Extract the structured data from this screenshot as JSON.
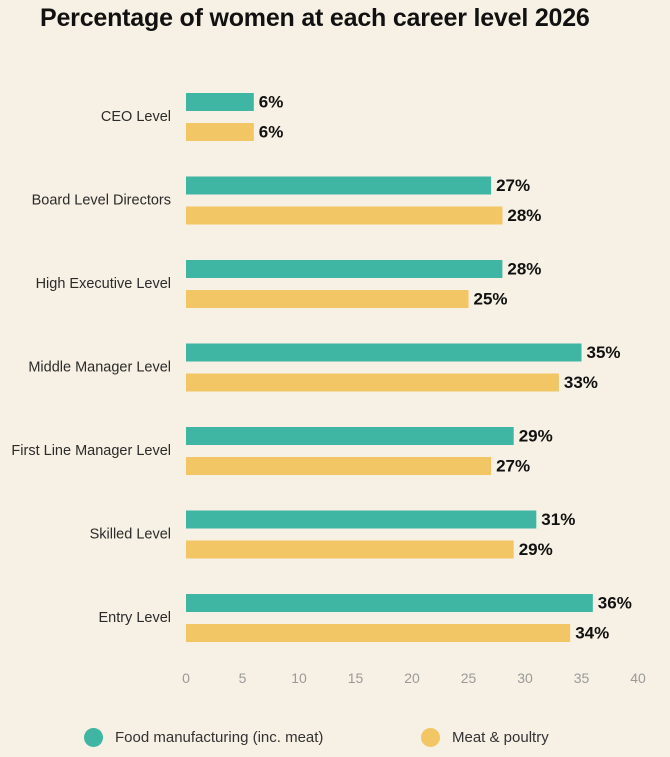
{
  "chart_data": {
    "type": "bar",
    "orientation": "horizontal",
    "title": "Percentage of women at each career level 2026",
    "categories": [
      "CEO Level",
      "Board Level Directors",
      "High Executive Level",
      "Middle Manager Level",
      "First Line Manager Level",
      "Skilled Level",
      "Entry Level"
    ],
    "series": [
      {
        "name": "Food manufacturing (inc. meat)",
        "color": "#3fb5a3",
        "values": [
          6,
          27,
          28,
          35,
          29,
          31,
          36
        ]
      },
      {
        "name": "Meat & poultry",
        "color": "#f2c665",
        "values": [
          6,
          28,
          25,
          33,
          27,
          29,
          34
        ]
      }
    ],
    "value_suffix": "%",
    "xlim": [
      0,
      40
    ],
    "xticks": [
      0,
      5,
      10,
      15,
      20,
      25,
      30,
      35,
      40
    ],
    "grid": false,
    "legend_position": "bottom"
  }
}
